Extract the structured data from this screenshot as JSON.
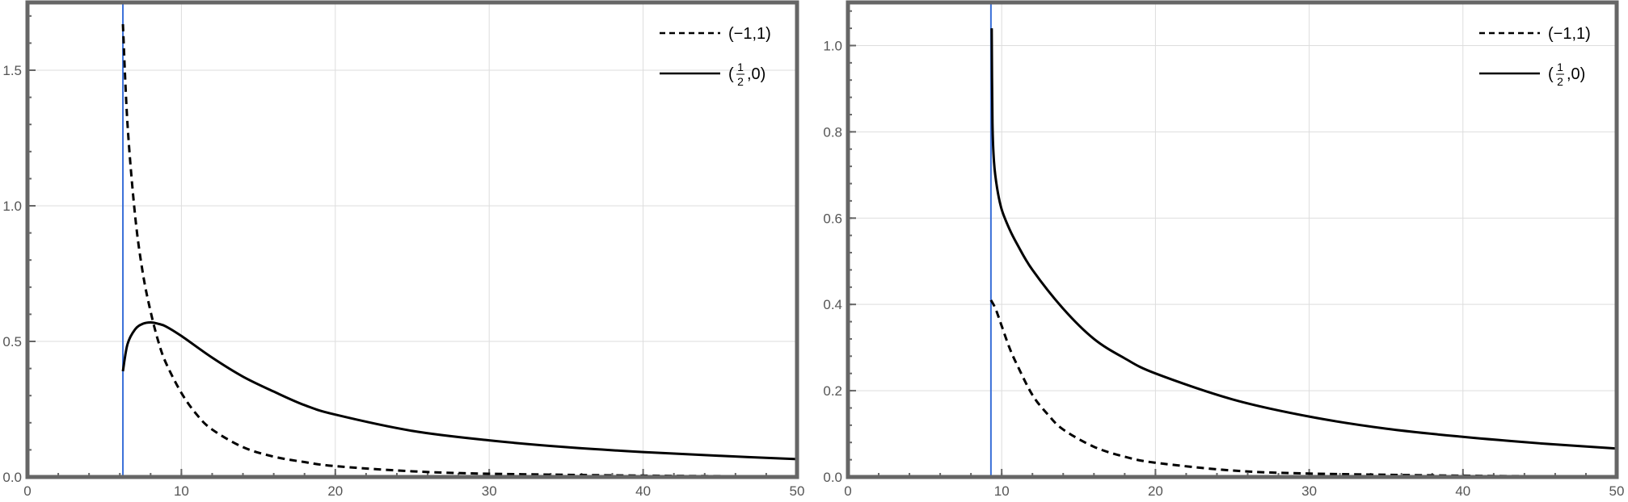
{
  "chart_data": [
    {
      "type": "line",
      "xlim": [
        0,
        50
      ],
      "ylim": [
        0,
        1.75
      ],
      "xticks": [
        0,
        10,
        20,
        30,
        40,
        50
      ],
      "yticks": [
        0.0,
        0.5,
        1.0,
        1.5
      ],
      "ytick_labels": [
        "0.0",
        "0.5",
        "1.0",
        "1.5"
      ],
      "grid": true,
      "legend_position": "top-right",
      "vline": {
        "x": 6.2,
        "color": "#3a6fd8"
      },
      "series": [
        {
          "name": "(−1,1)",
          "style": "dashed",
          "x": [
            6.2,
            6.5,
            7.0,
            7.5,
            8.0,
            8.5,
            9.0,
            10.0,
            11.0,
            12.0,
            14.0,
            16.0,
            18.0,
            20.0,
            25.0,
            30.0,
            40.0,
            50.0
          ],
          "y": [
            1.67,
            1.3,
            0.96,
            0.75,
            0.61,
            0.5,
            0.42,
            0.31,
            0.23,
            0.175,
            0.11,
            0.075,
            0.055,
            0.04,
            0.021,
            0.012,
            0.005,
            0.002
          ]
        },
        {
          "name_main": "(",
          "name_num": "1",
          "name_den": "2",
          "name_tail": ",0)",
          "style": "solid",
          "x": [
            6.2,
            6.5,
            7.0,
            7.5,
            8.0,
            8.5,
            9.0,
            10.0,
            12.0,
            14.0,
            16.0,
            18.0,
            20.0,
            25.0,
            30.0,
            35.0,
            40.0,
            45.0,
            50.0
          ],
          "y": [
            0.39,
            0.49,
            0.545,
            0.565,
            0.57,
            0.565,
            0.555,
            0.52,
            0.44,
            0.37,
            0.315,
            0.265,
            0.23,
            0.17,
            0.135,
            0.11,
            0.092,
            0.078,
            0.066
          ]
        }
      ]
    },
    {
      "type": "line",
      "xlim": [
        0,
        50
      ],
      "ylim": [
        0,
        1.1
      ],
      "xticks": [
        0,
        10,
        20,
        30,
        40,
        50
      ],
      "yticks": [
        0.0,
        0.2,
        0.4,
        0.6,
        0.8,
        1.0
      ],
      "ytick_labels": [
        "0.0",
        "0.2",
        "0.4",
        "0.6",
        "0.8",
        "1.0"
      ],
      "grid": true,
      "legend_position": "top-right",
      "vline": {
        "x": 9.3,
        "color": "#3a6fd8"
      },
      "series": [
        {
          "name": "(−1,1)",
          "style": "dashed",
          "x": [
            9.3,
            9.6,
            10.0,
            10.5,
            11.0,
            12.0,
            13.0,
            14.0,
            16.0,
            18.0,
            20.0,
            25.0,
            30.0,
            40.0,
            50.0
          ],
          "y": [
            0.41,
            0.39,
            0.35,
            0.3,
            0.26,
            0.19,
            0.145,
            0.11,
            0.07,
            0.047,
            0.033,
            0.015,
            0.008,
            0.003,
            0.001
          ]
        },
        {
          "name_main": "(",
          "name_num": "1",
          "name_den": "2",
          "name_tail": ",0)",
          "style": "solid",
          "x": [
            9.35,
            9.4,
            9.5,
            9.7,
            10.0,
            10.5,
            11.0,
            12.0,
            14.0,
            16.0,
            18.0,
            20.0,
            25.0,
            30.0,
            35.0,
            40.0,
            45.0,
            50.0
          ],
          "y": [
            1.04,
            0.82,
            0.73,
            0.67,
            0.62,
            0.575,
            0.54,
            0.48,
            0.39,
            0.32,
            0.275,
            0.24,
            0.18,
            0.14,
            0.112,
            0.093,
            0.078,
            0.066
          ]
        }
      ]
    }
  ]
}
